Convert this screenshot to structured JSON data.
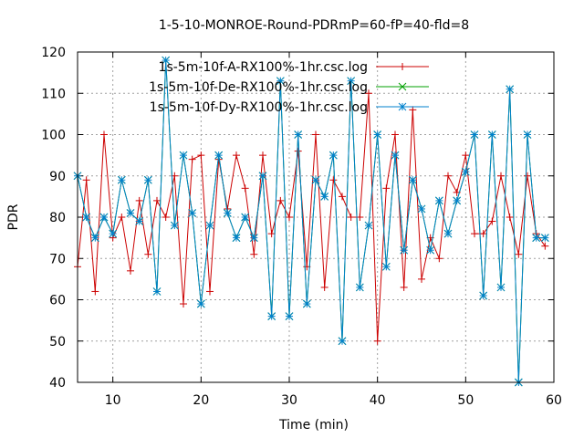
{
  "chart_data": {
    "type": "line",
    "title": "1-5-10-MONROE-Round-PDRmP=60-fP=40-fld=8",
    "xlabel": "Time (min)",
    "ylabel": "PDR",
    "xlim": [
      6,
      60
    ],
    "ylim": [
      40,
      120
    ],
    "xticks": [
      10,
      20,
      30,
      40,
      50,
      60
    ],
    "yticks": [
      40,
      50,
      60,
      70,
      80,
      90,
      100,
      110,
      120
    ],
    "grid": true,
    "legend_position": "top-right",
    "series": [
      {
        "name": "1s-5m-10f-A-RX100%-1hr.csc.log",
        "color": "#cc0000",
        "marker": "plus",
        "x": [
          6,
          7,
          8,
          9,
          10,
          11,
          12,
          13,
          14,
          15,
          16,
          17,
          18,
          19,
          20,
          21,
          22,
          23,
          24,
          25,
          26,
          27,
          28,
          29,
          30,
          31,
          32,
          33,
          34,
          35,
          36,
          37,
          38,
          39,
          40,
          41,
          42,
          43,
          44,
          45,
          46,
          47,
          48,
          49,
          50,
          51,
          52,
          53,
          54,
          55,
          56,
          57,
          58,
          59
        ],
        "y": [
          68,
          89,
          62,
          100,
          75,
          80,
          67,
          84,
          71,
          84,
          80,
          90,
          59,
          94,
          95,
          62,
          94,
          82,
          95,
          87,
          71,
          95,
          76,
          84,
          80,
          96,
          68,
          100,
          63,
          89,
          85,
          80,
          80,
          110,
          50,
          87,
          100,
          63,
          106,
          65,
          75,
          70,
          90,
          86,
          95,
          76,
          76,
          79,
          90,
          80,
          71,
          90,
          76,
          73
        ]
      },
      {
        "name": "1s-5m-10f-De-RX100%-1hr.csc.log",
        "color": "#00a000",
        "marker": "cross",
        "x": [
          6,
          7,
          8,
          9,
          10,
          11,
          12,
          13,
          14,
          15,
          16,
          17,
          18,
          19,
          20,
          21,
          22,
          23,
          24,
          25,
          26,
          27,
          28,
          29,
          30,
          31,
          32,
          33,
          34,
          35,
          36,
          37,
          38,
          39,
          40,
          41,
          42,
          43,
          44,
          45,
          46,
          47,
          48,
          49,
          50,
          51,
          52,
          53,
          54,
          55,
          56,
          57,
          58,
          59
        ],
        "y": [
          90,
          80,
          75,
          80,
          76,
          89,
          81,
          79,
          89,
          62,
          118,
          78,
          95,
          81,
          59,
          78,
          95,
          81,
          75,
          80,
          75,
          90,
          56,
          113,
          56,
          100,
          59,
          89,
          85,
          95,
          50,
          113,
          63,
          78,
          100,
          68,
          95,
          72,
          89,
          82,
          72,
          84,
          76,
          84,
          91,
          100,
          61,
          100,
          63,
          111,
          40,
          100,
          75,
          75
        ]
      },
      {
        "name": "1s-5m-10f-Dy-RX100%-1hr.csc.log",
        "color": "#0080cc",
        "marker": "star",
        "x": [
          6,
          7,
          8,
          9,
          10,
          11,
          12,
          13,
          14,
          15,
          16,
          17,
          18,
          19,
          20,
          21,
          22,
          23,
          24,
          25,
          26,
          27,
          28,
          29,
          30,
          31,
          32,
          33,
          34,
          35,
          36,
          37,
          38,
          39,
          40,
          41,
          42,
          43,
          44,
          45,
          46,
          47,
          48,
          49,
          50,
          51,
          52,
          53,
          54,
          55,
          56,
          57,
          58,
          59
        ],
        "y": [
          90,
          80,
          75,
          80,
          76,
          89,
          81,
          79,
          89,
          62,
          118,
          78,
          95,
          81,
          59,
          78,
          95,
          81,
          75,
          80,
          75,
          90,
          56,
          113,
          56,
          100,
          59,
          89,
          85,
          95,
          50,
          113,
          63,
          78,
          100,
          68,
          95,
          72,
          89,
          82,
          72,
          84,
          76,
          84,
          91,
          100,
          61,
          100,
          63,
          111,
          40,
          100,
          75,
          75
        ]
      }
    ]
  }
}
